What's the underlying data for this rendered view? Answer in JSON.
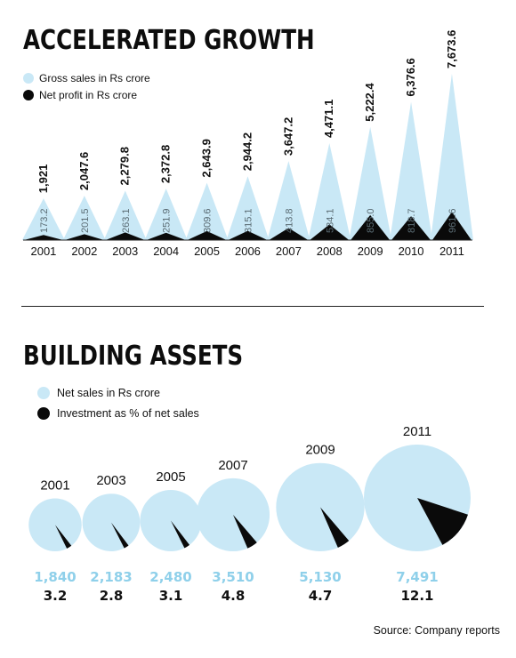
{
  "colors": {
    "light": "#c9e8f6",
    "dark": "#0a0a0a",
    "label_light": "#8fd0ea"
  },
  "chart_data": [
    {
      "type": "area",
      "title": "ACCELERATED GROWTH",
      "legend": [
        "Gross sales in Rs crore",
        "Net profit in Rs crore"
      ],
      "categories": [
        "2001",
        "2002",
        "2003",
        "2004",
        "2005",
        "2006",
        "2007",
        "2008",
        "2009",
        "2010",
        "2011"
      ],
      "series": [
        {
          "name": "Gross sales in Rs crore",
          "values": [
            1921,
            2047.6,
            2279.8,
            2372.8,
            2643.9,
            2944.2,
            3647.2,
            4471.1,
            5222.4,
            6376.6,
            7673.6
          ],
          "labels": [
            "1,921",
            "2,047.6",
            "2,279.8",
            "2,372.8",
            "2,643.9",
            "2,944.2",
            "3,647.2",
            "4,471.1",
            "5,222.4",
            "6,376.6",
            "7,673.6"
          ]
        },
        {
          "name": "Net profit in Rs crore",
          "values": [
            173.2,
            201.5,
            263.1,
            251.9,
            309.6,
            315.1,
            413.8,
            534.1,
            855.0,
            818.7,
            961.6
          ],
          "labels": [
            "173.2",
            "201.5",
            "263.1",
            "251.9",
            "309.6",
            "315.1",
            "413.8",
            "534.1",
            "855.0",
            "818.7",
            "961.6"
          ]
        }
      ]
    },
    {
      "type": "bubble",
      "title": "BUILDING ASSETS",
      "legend": [
        "Net sales in Rs crore",
        "Investment as % of net sales"
      ],
      "categories": [
        "2001",
        "2003",
        "2005",
        "2007",
        "2009",
        "2011"
      ],
      "series": [
        {
          "name": "Net sales in Rs crore",
          "values": [
            1840,
            2183,
            2480,
            3510,
            5130,
            7491
          ],
          "labels": [
            "1,840",
            "2,183",
            "2,480",
            "3,510",
            "5,130",
            "7,491"
          ]
        },
        {
          "name": "Investment as % of net sales",
          "values": [
            3.2,
            2.8,
            3.1,
            4.8,
            4.7,
            12.1
          ],
          "labels": [
            "3.2",
            "2.8",
            "3.1",
            "4.8",
            "4.7",
            "12.1"
          ]
        }
      ]
    }
  ],
  "source": "Source: Company reports"
}
